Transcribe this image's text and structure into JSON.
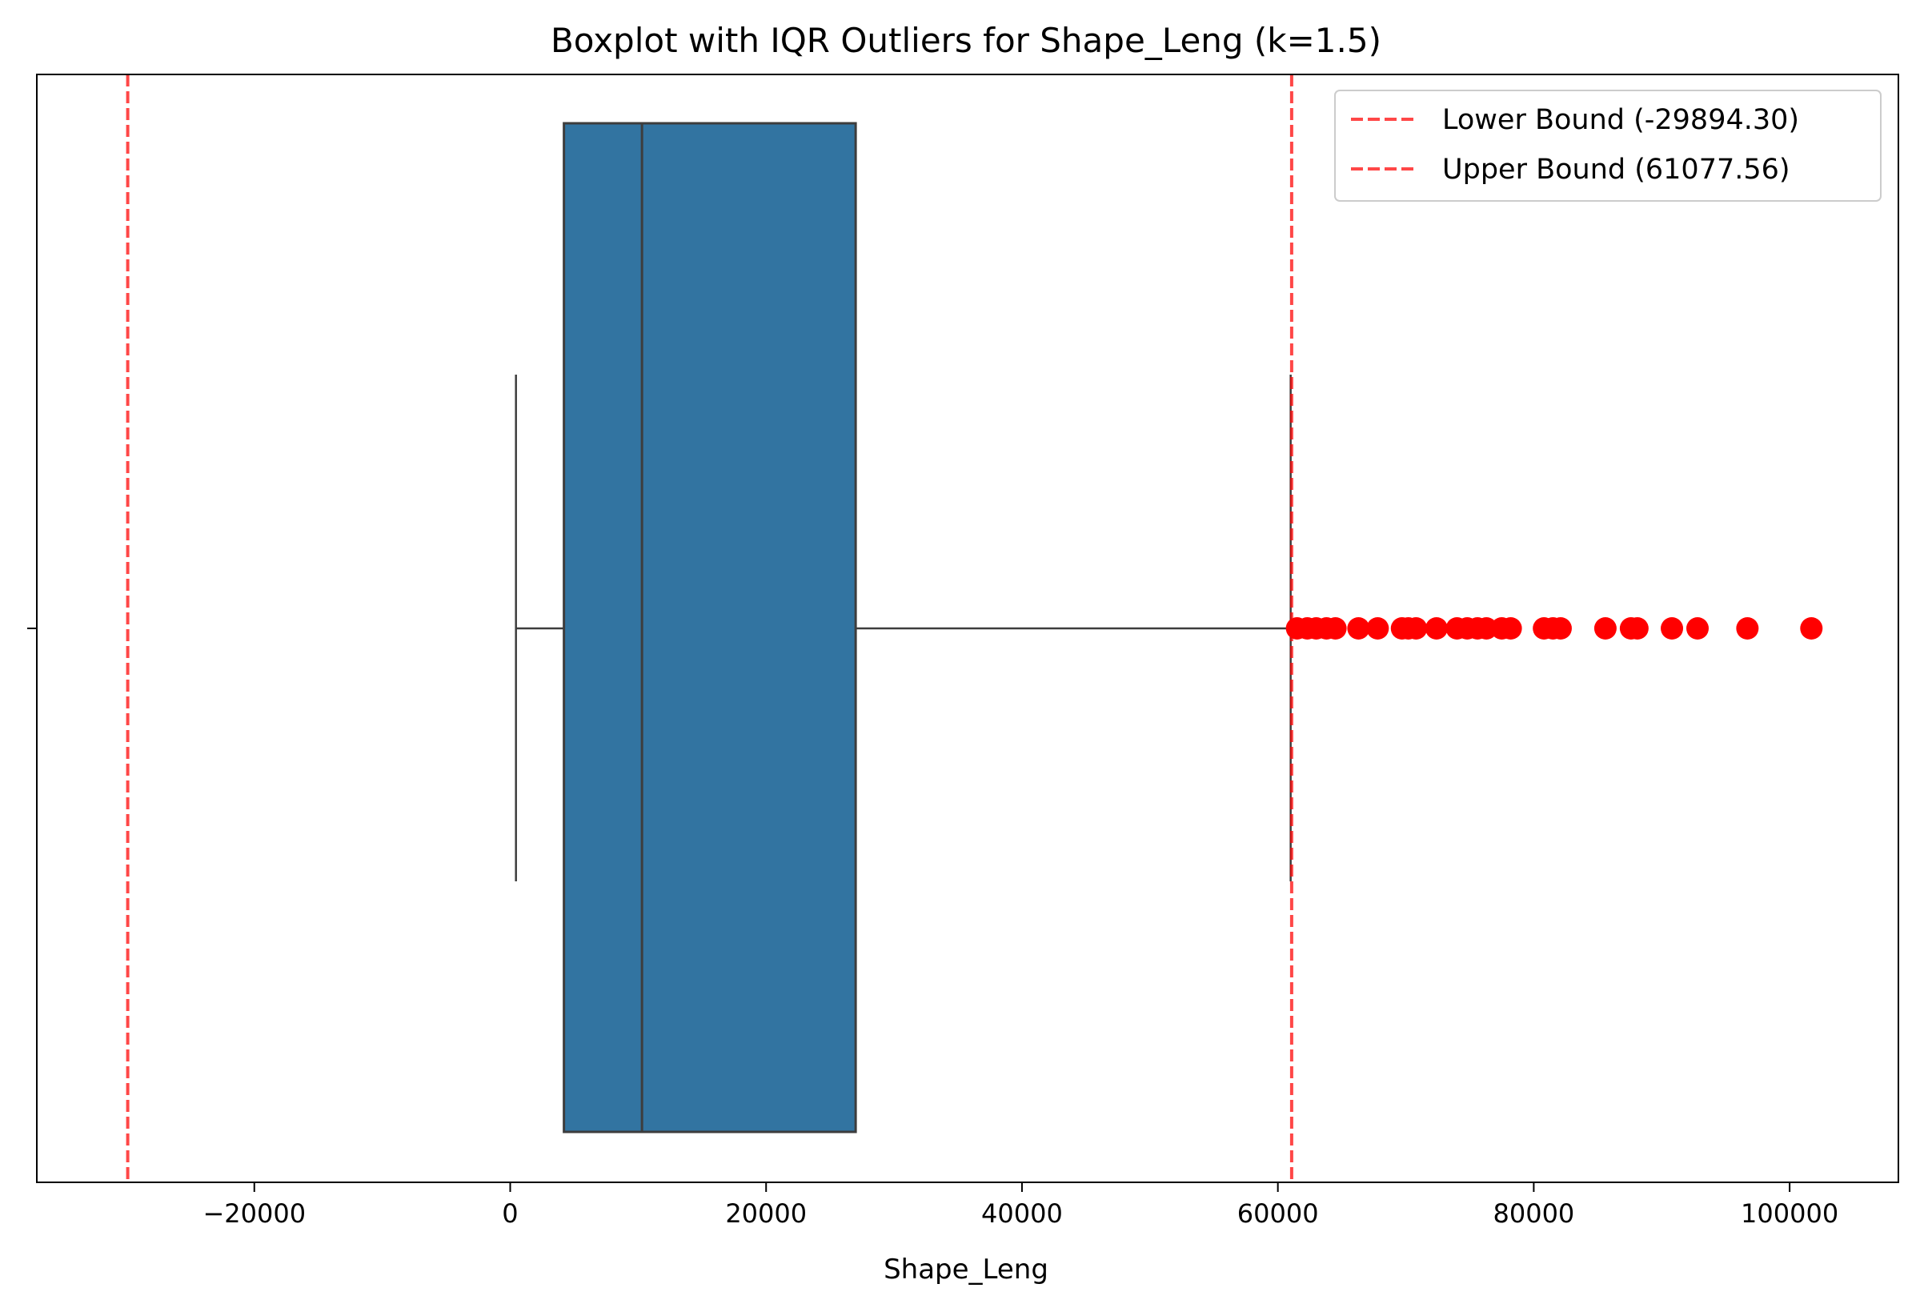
{
  "chart_data": {
    "type": "boxplot",
    "orientation": "horizontal",
    "title": "Boxplot with IQR Outliers for Shape_Leng (k=1.5)",
    "xlabel": "Shape_Leng",
    "ylabel": "",
    "xlim": [
      -37000,
      108500
    ],
    "xticks": [
      -20000,
      0,
      20000,
      40000,
      60000,
      80000,
      100000
    ],
    "xtick_labels": [
      "−20000",
      "0",
      "20000",
      "40000",
      "60000",
      "80000",
      "100000"
    ],
    "grid": false,
    "box": {
      "whisker_low": 450,
      "q1": 4200,
      "median": 10300,
      "q3": 27000,
      "whisker_high": 61000,
      "color": "#3274a1",
      "edge_color": "#3d3d3d"
    },
    "outliers": {
      "color": "#ff0000",
      "values": [
        61500,
        62300,
        63000,
        63800,
        64500,
        66300,
        67800,
        69700,
        70200,
        70800,
        72400,
        74000,
        74800,
        75600,
        76300,
        77500,
        78200,
        80800,
        81500,
        82100,
        85600,
        87600,
        88100,
        90800,
        92800,
        96700,
        101700
      ]
    },
    "bounds": [
      {
        "name": "Lower Bound (-29894.30)",
        "value": -29894.3,
        "color": "#ff0000"
      },
      {
        "name": "Upper Bound (61077.56)",
        "value": 61077.56,
        "color": "#ff0000"
      }
    ],
    "legend": {
      "placement": "top-right"
    }
  }
}
